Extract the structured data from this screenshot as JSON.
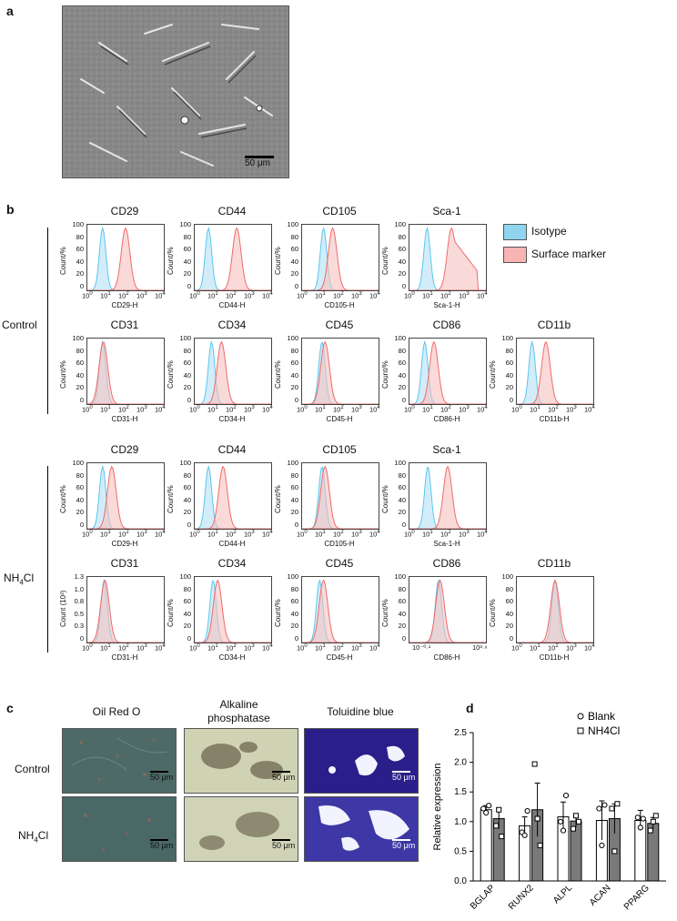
{
  "panels": {
    "a": "a",
    "b": "b",
    "c": "c",
    "d": "d"
  },
  "panel_a": {
    "scale_label": "50 μm"
  },
  "panel_b": {
    "group_control": "Control",
    "group_nh4cl_prefix": "NH",
    "group_nh4cl_sub": "4",
    "group_nh4cl_suffix": "Cl",
    "legend": [
      {
        "label": "Isotype",
        "color": "#8fd5f0"
      },
      {
        "label": "Surface marker",
        "color": "#f7b4b2"
      }
    ],
    "control_row1": [
      {
        "title": "CD29",
        "xlabel": "CD29-H"
      },
      {
        "title": "CD44",
        "xlabel": "CD44-H"
      },
      {
        "title": "CD105",
        "xlabel": "CD105-H"
      },
      {
        "title": "Sca-1",
        "xlabel": "Sca-1-H"
      }
    ],
    "control_row2": [
      {
        "title": "CD31",
        "xlabel": "CD31-H"
      },
      {
        "title": "CD34",
        "xlabel": "CD34-H"
      },
      {
        "title": "CD45",
        "xlabel": "CD45-H"
      },
      {
        "title": "CD86",
        "xlabel": "CD86-H"
      },
      {
        "title": "CD11b",
        "xlabel": "CD11b-H"
      }
    ],
    "nh4_row1": [
      {
        "title": "CD29",
        "xlabel": "CD29-H"
      },
      {
        "title": "CD44",
        "xlabel": "CD44-H"
      },
      {
        "title": "CD105",
        "xlabel": "CD105-H"
      },
      {
        "title": "Sca-1",
        "xlabel": "Sca-1-H"
      }
    ],
    "nh4_row2": [
      {
        "title": "CD31",
        "xlabel": "CD31-H"
      },
      {
        "title": "CD34",
        "xlabel": "CD34-H"
      },
      {
        "title": "CD45",
        "xlabel": "CD45-H"
      },
      {
        "title": "CD86",
        "xlabel": "CD86-H"
      },
      {
        "title": "CD11b",
        "xlabel": "CD11b-H"
      }
    ],
    "ylabel": "Count/%",
    "ylabel_alt": "Count (10³)",
    "yticks": [
      "100",
      "80",
      "60",
      "40",
      "20",
      "0"
    ],
    "yticks_alt": [
      "1.3",
      "1.0",
      "0.8",
      "0.5",
      "0.3",
      "0"
    ],
    "xticks_exp": [
      "0",
      "1",
      "2",
      "3",
      "4"
    ],
    "xticks_base": "10",
    "cd86_alt_xticks": [
      "10⁻⁰·¹",
      "10³·⁹"
    ]
  },
  "panel_c": {
    "columns": [
      "Oil Red O",
      "Alkaline\nphosphatase",
      "Toluidine blue"
    ],
    "rows": [
      "Control",
      "NH4Cl"
    ],
    "scale_label": "50 μm"
  },
  "chart_data": {
    "type": "bar",
    "ylabel": "Relative expression",
    "ylim": [
      0,
      2.5
    ],
    "yticks": [
      "0.0",
      "0.5",
      "1.0",
      "1.5",
      "2.0",
      "2.5"
    ],
    "categories": [
      "BGLAP",
      "RUNX2",
      "ALPL",
      "ACAN",
      "PPARG"
    ],
    "series": [
      {
        "name": "Blank",
        "values": [
          1.2,
          0.93,
          1.08,
          1.02,
          1.02
        ],
        "errors": [
          0.07,
          0.15,
          0.25,
          0.33,
          0.17
        ],
        "points": [
          [
            1.22,
            1.15,
            1.27
          ],
          [
            0.82,
            0.77,
            1.18
          ],
          [
            1.0,
            0.85,
            1.44
          ],
          [
            1.22,
            0.6,
            1.28
          ],
          [
            1.07,
            0.9,
            1.05
          ]
        ]
      },
      {
        "name": "NH4Cl",
        "values": [
          1.05,
          1.2,
          1.01,
          1.05,
          0.97
        ],
        "errors": [
          0.17,
          0.45,
          0.1,
          0.25,
          0.1
        ],
        "points": [
          [
            0.93,
            1.2,
            0.75
          ],
          [
            1.97,
            1.05,
            0.6
          ],
          [
            0.88,
            1.1,
            1.0
          ],
          [
            1.22,
            0.5,
            1.3
          ],
          [
            0.85,
            1.0,
            1.1
          ]
        ]
      }
    ],
    "legend_position": "top-right"
  }
}
